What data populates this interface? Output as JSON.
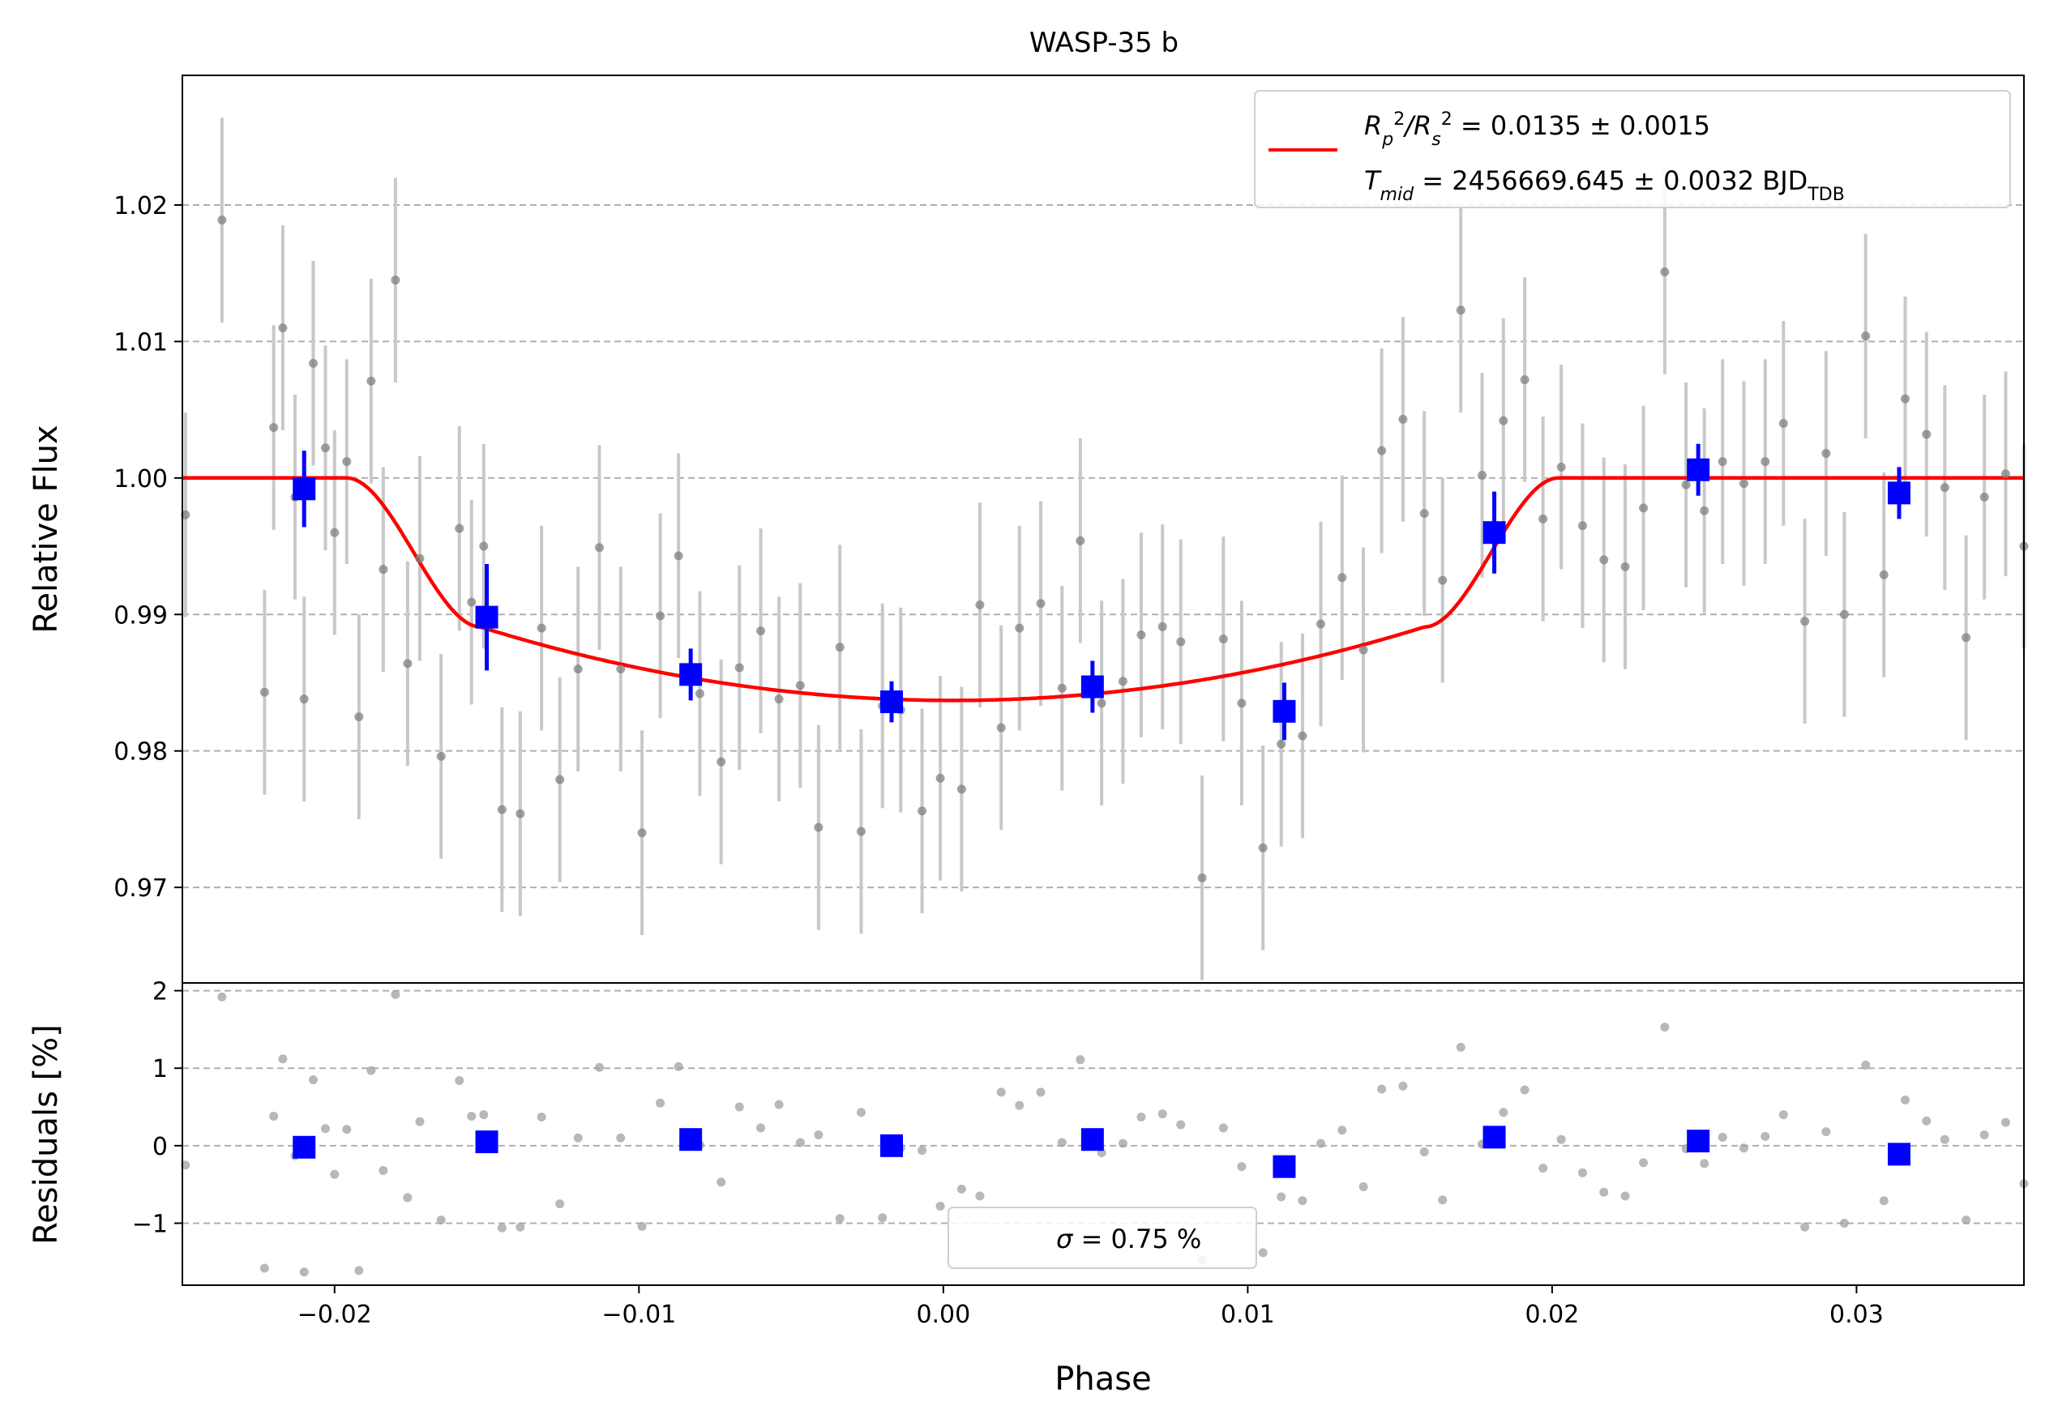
{
  "chart_data": [
    {
      "type": "scatter",
      "title": "WASP-35 b",
      "ylabel": "Relative Flux",
      "xlim": [
        -0.025,
        0.0355
      ],
      "ylim": [
        0.963,
        1.0295
      ],
      "grid": "horizontal dashed",
      "yticks": [
        0.97,
        0.98,
        0.99,
        1.0,
        1.01,
        1.02
      ],
      "ytick_labels": [
        "0.97",
        "0.98",
        "0.99",
        "1.00",
        "1.01",
        "1.02"
      ],
      "legend": {
        "placement": "top-right",
        "line1_a": "R",
        "line1_b": "p",
        "line1_c": "2",
        "line1_d": "/R",
        "line1_e": "s",
        "line1_f": "2",
        "line1_g": " = 0.0135 ± 0.0015",
        "line2_a": "T",
        "line2_b": "mid",
        "line2_c": " = 2456669.645 ± 0.0032 BJD",
        "line2_d": "TDB"
      },
      "model": {
        "name": "R_p^2/R_s^2 = 0.0135 ± 0.0015, T_mid = 2456669.645 ± 0.0032 BJD_TDB",
        "color": "#ff0000",
        "t_mid": 0.0003,
        "depth": 0.0163,
        "ingress_start": 0.0199,
        "ingress_end": 0.0155
      },
      "series": [
        {
          "name": "data",
          "color": "#808080",
          "errcolor": "#c8c8c8",
          "x": [
            -0.0249,
            -0.0237,
            -0.0223,
            -0.022,
            -0.0217,
            -0.0213,
            -0.021,
            -0.0207,
            -0.0203,
            -0.02,
            -0.0196,
            -0.0192,
            -0.0188,
            -0.0184,
            -0.018,
            -0.0176,
            -0.0172,
            -0.0165,
            -0.0159,
            -0.0155,
            -0.0151,
            -0.0145,
            -0.0139,
            -0.0132,
            -0.0126,
            -0.012,
            -0.0113,
            -0.0106,
            -0.0099,
            -0.0093,
            -0.0087,
            -0.008,
            -0.0073,
            -0.0067,
            -0.006,
            -0.0054,
            -0.0047,
            -0.0041,
            -0.0034,
            -0.0027,
            -0.002,
            -0.0014,
            -0.0007,
            -0.0001,
            0.0006,
            0.0012,
            0.0019,
            0.0025,
            0.0032,
            0.0039,
            0.0045,
            0.0052,
            0.0059,
            0.0065,
            0.0072,
            0.0078,
            0.0085,
            0.0092,
            0.0098,
            0.0105,
            0.0111,
            0.0118,
            0.0124,
            0.0131,
            0.0138,
            0.0144,
            0.0151,
            0.0158,
            0.0164,
            0.017,
            0.0177,
            0.0184,
            0.0191,
            0.0197,
            0.0203,
            0.021,
            0.0217,
            0.0224,
            0.023,
            0.0237,
            0.0244,
            0.025,
            0.0256,
            0.0263,
            0.027,
            0.0276,
            0.0283,
            0.029,
            0.0296,
            0.0303,
            0.0309,
            0.0316,
            0.0323,
            0.0329,
            0.0336,
            0.0342,
            0.0349,
            0.0355
          ],
          "y": [
            0.9973,
            1.0189,
            0.9843,
            1.0037,
            1.011,
            0.9986,
            0.9838,
            1.0084,
            1.0022,
            0.996,
            1.0012,
            0.9825,
            1.0071,
            0.9933,
            1.0145,
            0.9864,
            0.9941,
            0.9796,
            0.9963,
            0.9909,
            0.995,
            0.9757,
            0.9754,
            0.989,
            0.9779,
            0.986,
            0.9949,
            0.986,
            0.974,
            0.9899,
            0.9943,
            0.9842,
            0.9792,
            0.9861,
            0.9888,
            0.9838,
            0.9848,
            0.9744,
            0.9876,
            0.9741,
            0.9833,
            0.983,
            0.9756,
            0.978,
            0.9772,
            0.9907,
            0.9817,
            0.989,
            0.9908,
            0.9846,
            0.9954,
            0.9835,
            0.9851,
            0.9885,
            0.9891,
            0.988,
            0.9707,
            0.9882,
            0.9835,
            0.9729,
            0.9805,
            0.9811,
            0.9893,
            0.9927,
            0.9874,
            1.002,
            1.0043,
            0.9974,
            0.9925,
            1.0123,
            1.0002,
            1.0042,
            1.0072,
            0.997,
            1.0008,
            0.9965,
            0.994,
            0.9935,
            0.9978,
            1.0151,
            0.9995,
            0.9976,
            1.0012,
            0.9996,
            1.0012,
            1.004,
            0.9895,
            1.0018,
            0.99,
            1.0104,
            0.9929,
            1.0058,
            1.0032,
            0.9993,
            0.9883,
            0.9986,
            1.0003,
            0.995
          ],
          "yerr": [
            0.0075,
            0.0075,
            0.0075,
            0.0075,
            0.0075,
            0.0075,
            0.0075,
            0.0075,
            0.0075,
            0.0075,
            0.0075,
            0.0075,
            0.0075,
            0.0075,
            0.0075,
            0.0075,
            0.0075,
            0.0075,
            0.0075,
            0.0075,
            0.0075,
            0.0075,
            0.0075,
            0.0075,
            0.0075,
            0.0075,
            0.0075,
            0.0075,
            0.0075,
            0.0075,
            0.0075,
            0.0075,
            0.0075,
            0.0075,
            0.0075,
            0.0075,
            0.0075,
            0.0075,
            0.0075,
            0.0075,
            0.0075,
            0.0075,
            0.0075,
            0.0075,
            0.0075,
            0.0075,
            0.0075,
            0.0075,
            0.0075,
            0.0075,
            0.0075,
            0.0075,
            0.0075,
            0.0075,
            0.0075,
            0.0075,
            0.0075,
            0.0075,
            0.0075,
            0.0075,
            0.0075,
            0.0075,
            0.0075,
            0.0075,
            0.0075,
            0.0075,
            0.0075,
            0.0075,
            0.0075,
            0.0075,
            0.0075,
            0.0075,
            0.0075,
            0.0075,
            0.0075,
            0.0075,
            0.0075,
            0.0075,
            0.0075,
            0.0075,
            0.0075,
            0.0075,
            0.0075,
            0.0075,
            0.0075,
            0.0075,
            0.0075,
            0.0075,
            0.0075,
            0.0075,
            0.0075,
            0.0075,
            0.0075,
            0.0075,
            0.0075,
            0.0075,
            0.0075,
            0.0075
          ]
        },
        {
          "name": "binned",
          "color": "#0000ff",
          "x": [
            -0.021,
            -0.015,
            -0.0083,
            -0.0017,
            0.0049,
            0.0112,
            0.0181,
            0.0248,
            0.0314
          ],
          "y": [
            0.9992,
            0.9898,
            0.9856,
            0.9836,
            0.9847,
            0.9829,
            0.996,
            1.0006,
            0.9989
          ],
          "yerr": [
            0.0028,
            0.0039,
            0.0019,
            0.0015,
            0.0019,
            0.0021,
            0.003,
            0.0019,
            0.0019
          ]
        }
      ]
    },
    {
      "type": "scatter",
      "xlabel": "Phase",
      "ylabel": "Residuals [%]",
      "xlim": [
        -0.025,
        0.0355
      ],
      "ylim": [
        -1.8,
        2.1
      ],
      "grid": "horizontal dashed",
      "xticks": [
        -0.02,
        -0.01,
        0.0,
        0.01,
        0.02,
        0.03
      ],
      "xtick_labels": [
        "−0.02",
        "−0.01",
        "0.00",
        "0.01",
        "0.02",
        "0.03"
      ],
      "yticks": [
        -1,
        0,
        1,
        2
      ],
      "ytick_labels": [
        "−1",
        "0",
        "1",
        "2"
      ],
      "legend": {
        "placement": "bottom-center",
        "sigma_symbol": "σ",
        "sigma_text": " = 0.75 %"
      },
      "series": [
        {
          "name": "residuals",
          "color": "#a0a0a0",
          "x": [
            -0.0249,
            -0.0237,
            -0.0223,
            -0.022,
            -0.0217,
            -0.0213,
            -0.021,
            -0.0207,
            -0.0203,
            -0.02,
            -0.0196,
            -0.0192,
            -0.0188,
            -0.0184,
            -0.018,
            -0.0176,
            -0.0172,
            -0.0165,
            -0.0159,
            -0.0155,
            -0.0151,
            -0.0145,
            -0.0139,
            -0.0132,
            -0.0126,
            -0.012,
            -0.0113,
            -0.0106,
            -0.0099,
            -0.0093,
            -0.0087,
            -0.008,
            -0.0073,
            -0.0067,
            -0.006,
            -0.0054,
            -0.0047,
            -0.0041,
            -0.0034,
            -0.0027,
            -0.002,
            -0.0014,
            -0.0007,
            -0.0001,
            0.0006,
            0.0012,
            0.0019,
            0.0025,
            0.0032,
            0.0039,
            0.0045,
            0.0052,
            0.0059,
            0.0065,
            0.0072,
            0.0078,
            0.0085,
            0.0092,
            0.0098,
            0.0105,
            0.0111,
            0.0118,
            0.0124,
            0.0131,
            0.0138,
            0.0144,
            0.0151,
            0.0158,
            0.0164,
            0.017,
            0.0177,
            0.0184,
            0.0191,
            0.0197,
            0.0203,
            0.021,
            0.0217,
            0.0224,
            0.023,
            0.0237,
            0.0244,
            0.025,
            0.0256,
            0.0263,
            0.027,
            0.0276,
            0.0283,
            0.029,
            0.0296,
            0.0303,
            0.0309,
            0.0316,
            0.0323,
            0.0329,
            0.0336,
            0.0342,
            0.0349,
            0.0355
          ],
          "y": [
            -0.25,
            1.92,
            -1.58,
            0.38,
            1.12,
            -0.13,
            -1.63,
            0.85,
            0.22,
            -0.37,
            0.21,
            -1.61,
            0.97,
            -0.32,
            1.95,
            -0.67,
            0.31,
            -0.96,
            0.84,
            0.38,
            0.4,
            -1.06,
            -1.05,
            0.37,
            -0.75,
            0.1,
            1.01,
            0.1,
            -1.04,
            0.55,
            1.02,
            0.01,
            -0.47,
            0.5,
            0.23,
            0.53,
            0.04,
            0.14,
            -0.94,
            0.43,
            -0.93,
            -0.03,
            -0.06,
            -0.78,
            -0.56,
            -0.65,
            0.69,
            0.52,
            0.69,
            0.04,
            1.11,
            -0.09,
            0.03,
            0.37,
            0.41,
            0.27,
            -1.48,
            0.23,
            -0.27,
            -1.38,
            -0.66,
            -0.71,
            0.03,
            0.2,
            -0.53,
            0.73,
            0.77,
            -0.08,
            -0.7,
            1.27,
            0.02,
            0.43,
            0.72,
            -0.29,
            0.08,
            -0.35,
            -0.6,
            -0.65,
            -0.22,
            1.53,
            -0.04,
            -0.23,
            0.11,
            -0.03,
            0.12,
            0.4,
            -1.05,
            0.18,
            -1.0,
            1.04,
            -0.71,
            0.59,
            0.32,
            0.08,
            -0.96,
            0.14,
            0.3,
            -0.49
          ]
        },
        {
          "name": "binned residuals",
          "color": "#0000ff",
          "x": [
            -0.021,
            -0.015,
            -0.0083,
            -0.0017,
            0.0049,
            0.0112,
            0.0181,
            0.0248,
            0.0314
          ],
          "y": [
            -0.02,
            0.05,
            0.08,
            0.0,
            0.08,
            -0.27,
            0.11,
            0.06,
            -0.11
          ]
        }
      ]
    }
  ]
}
